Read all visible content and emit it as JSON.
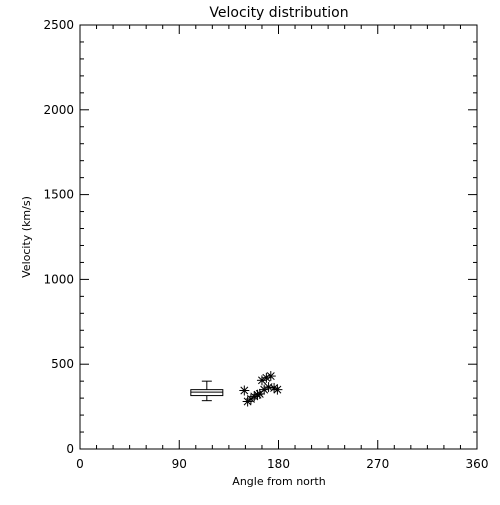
{
  "chart_data": {
    "type": "scatter",
    "title": "Velocity distribution",
    "xlabel": "Angle from north",
    "ylabel": "Velocity (km/s)",
    "xlim": [
      0,
      360
    ],
    "ylim": [
      0,
      2500
    ],
    "x_ticks": [
      0,
      90,
      180,
      270,
      360
    ],
    "x_tick_labels": [
      "0",
      "90",
      "180",
      "270",
      "360"
    ],
    "y_ticks": [
      0,
      500,
      1000,
      1500,
      2000,
      2500
    ],
    "y_tick_labels": [
      "0",
      "500",
      "1000",
      "1500",
      "2000",
      "2500"
    ],
    "grid": false,
    "boxplot": {
      "x": 115,
      "min": 285,
      "q1": 315,
      "median": 335,
      "q3": 350,
      "max": 400
    },
    "points": [
      {
        "x": 149,
        "y": 345
      },
      {
        "x": 152,
        "y": 280
      },
      {
        "x": 155,
        "y": 295
      },
      {
        "x": 158,
        "y": 310
      },
      {
        "x": 161,
        "y": 320
      },
      {
        "x": 163,
        "y": 325
      },
      {
        "x": 165,
        "y": 405
      },
      {
        "x": 167,
        "y": 350
      },
      {
        "x": 169,
        "y": 420
      },
      {
        "x": 171,
        "y": 365
      },
      {
        "x": 173,
        "y": 430
      },
      {
        "x": 176,
        "y": 360
      },
      {
        "x": 179,
        "y": 350
      }
    ],
    "colors": {
      "axes": "#000000",
      "marks": "#000000",
      "background": "#ffffff"
    }
  }
}
